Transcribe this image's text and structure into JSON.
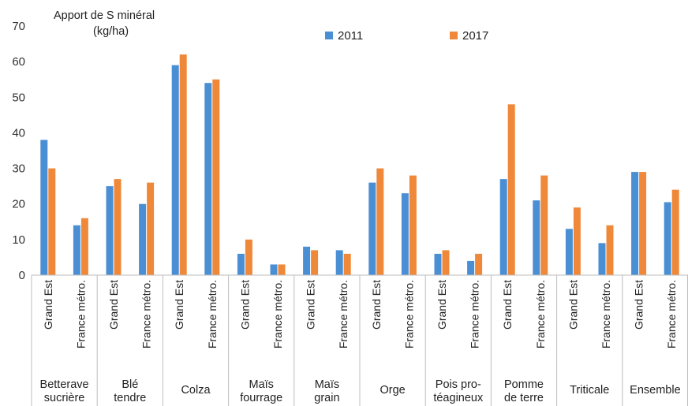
{
  "chart_data": {
    "type": "bar",
    "title": "",
    "ylabel_line1": "Apport de S minéral",
    "ylabel_line2": "(kg/ha)",
    "ylim": [
      0,
      70
    ],
    "yticks": [
      0,
      10,
      20,
      30,
      40,
      50,
      60,
      70
    ],
    "grid": false,
    "legend_position": "top",
    "groups": [
      {
        "label": [
          "Betterave",
          "sucrière"
        ]
      },
      {
        "label": [
          "Blé",
          "tendre"
        ]
      },
      {
        "label": [
          "Colza"
        ]
      },
      {
        "label": [
          "Maïs",
          "fourrage"
        ]
      },
      {
        "label": [
          "Maïs",
          "grain"
        ]
      },
      {
        "label": [
          "Orge"
        ]
      },
      {
        "label": [
          "Pois pro-",
          "téagineux"
        ]
      },
      {
        "label": [
          "Pomme",
          "de terre"
        ]
      },
      {
        "label": [
          "Triticale"
        ]
      },
      {
        "label": [
          "Ensemble"
        ]
      }
    ],
    "subcategories": [
      "Grand Est",
      "France métro."
    ],
    "series": [
      {
        "name": "2011",
        "color": "#4a8fd4",
        "values": [
          38,
          14,
          25,
          20,
          59,
          54,
          6,
          3,
          8,
          7,
          26,
          23,
          6,
          4,
          27,
          21,
          13,
          9,
          29,
          20.5
        ]
      },
      {
        "name": "2017",
        "color": "#f0883a",
        "values": [
          30,
          16,
          27,
          26,
          62,
          55,
          10,
          3,
          7,
          6,
          30,
          28,
          7,
          6,
          48,
          28,
          19,
          14,
          29,
          24
        ]
      }
    ]
  }
}
